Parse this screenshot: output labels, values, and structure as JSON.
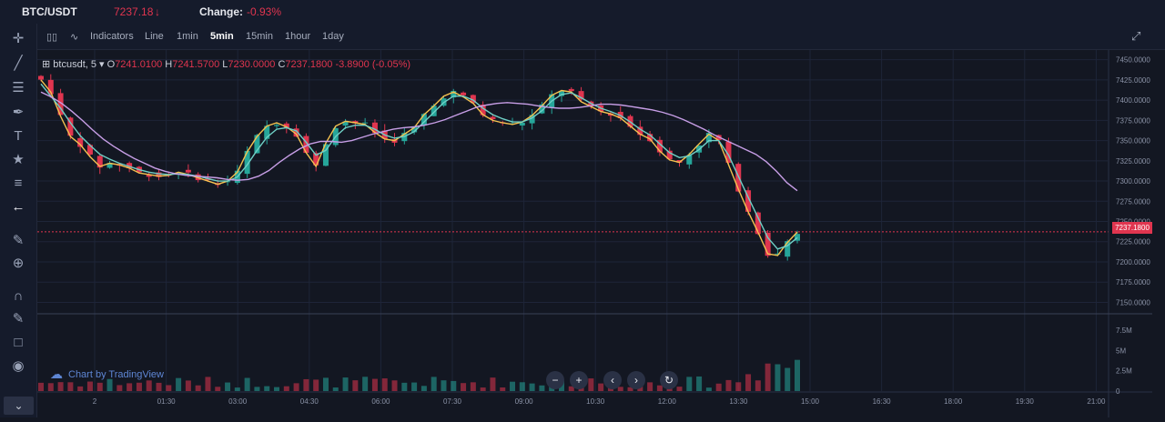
{
  "header": {
    "pair": "BTC/USDT",
    "price": "7237.18",
    "change_label": "Change:",
    "change_value": "-0.93%"
  },
  "toolbar": {
    "indicators_label": "Indicators",
    "intervals": [
      "Line",
      "1min",
      "5min",
      "15min",
      "1hour",
      "1day"
    ],
    "active_interval": "5min"
  },
  "legend": {
    "symbol": "btcusdt, 5",
    "o_label": "O",
    "open": "7241.0100",
    "h_label": "H",
    "high": "7241.5700",
    "l_label": "L",
    "low": "7230.0000",
    "c_label": "C",
    "close": "7237.1800",
    "change": "-3.8900 (-0.05%)"
  },
  "watermark": "Chart by TradingView",
  "last_price_tag": "7237.1800",
  "colors": {
    "up": "#26a69a",
    "down": "#e0354f",
    "ma_fast": "#f5c250",
    "ma_mid": "#6fd0c6",
    "ma_slow": "#c79ee6",
    "background": "#131722"
  },
  "chart_data": {
    "type": "line",
    "title": "",
    "ylim": [
      7137,
      7462
    ],
    "y_ticks": [
      "7450.0000",
      "7425.0000",
      "7400.0000",
      "7375.0000",
      "7350.0000",
      "7325.0000",
      "7300.0000",
      "7275.0000",
      "7250.0000",
      "7225.0000",
      "7200.0000",
      "7175.0000",
      "7150.0000"
    ],
    "x_ticks": [
      "2",
      "01:30",
      "03:00",
      "04:30",
      "06:00",
      "07:30",
      "09:00",
      "10:30",
      "12:00",
      "13:30",
      "15:00",
      "16:30",
      "18:00",
      "19:30",
      "21:00"
    ],
    "volume_ticks": [
      "7.5M",
      "5M",
      "2.5M",
      "0"
    ],
    "volume_ylim": [
      0,
      9.5
    ],
    "series": [
      {
        "values": [
          7425,
          7410,
          7380,
          7355,
          7345,
          7330,
          7318,
          7322,
          7320,
          7316,
          7310,
          7308,
          7306,
          7307,
          7311,
          7308,
          7304,
          7300,
          7296,
          7300,
          7311,
          7336,
          7355,
          7368,
          7372,
          7367,
          7358,
          7335,
          7318,
          7347,
          7368,
          7374,
          7372,
          7370,
          7360,
          7352,
          7350,
          7358,
          7366,
          7382,
          7393,
          7405,
          7410,
          7404,
          7396,
          7382,
          7375,
          7372,
          7370,
          7373,
          7381,
          7393,
          7406,
          7412,
          7410,
          7398,
          7392,
          7386,
          7383,
          7378,
          7368,
          7358,
          7352,
          7337,
          7326,
          7323,
          7333,
          7346,
          7358,
          7350,
          7320,
          7290,
          7262,
          7237,
          7210,
          7208,
          7224,
          7237
        ]
      },
      {
        "values": [
          7420,
          7405,
          7390,
          7372,
          7356,
          7344,
          7333,
          7327,
          7322,
          7318,
          7314,
          7311,
          7309,
          7308,
          7309,
          7308,
          7306,
          7303,
          7300,
          7300,
          7305,
          7320,
          7338,
          7354,
          7364,
          7366,
          7362,
          7348,
          7332,
          7338,
          7355,
          7366,
          7369,
          7369,
          7364,
          7357,
          7353,
          7355,
          7361,
          7373,
          7385,
          7397,
          7405,
          7405,
          7400,
          7390,
          7382,
          7377,
          7373,
          7373,
          7378,
          7387,
          7399,
          7407,
          7409,
          7403,
          7396,
          7390,
          7386,
          7381,
          7373,
          7364,
          7357,
          7346,
          7335,
          7329,
          7331,
          7339,
          7350,
          7350,
          7332,
          7306,
          7280,
          7255,
          7230,
          7216,
          7220,
          7230
        ]
      },
      {
        "values": [
          7410,
          7404,
          7396,
          7386,
          7375,
          7363,
          7352,
          7343,
          7335,
          7328,
          7322,
          7316,
          7312,
          7309,
          7307,
          7306,
          7305,
          7304,
          7302,
          7301,
          7302,
          7306,
          7313,
          7323,
          7332,
          7340,
          7346,
          7349,
          7349,
          7348,
          7350,
          7354,
          7358,
          7361,
          7364,
          7366,
          7367,
          7369,
          7372,
          7376,
          7381,
          7386,
          7391,
          7394,
          7396,
          7397,
          7396,
          7395,
          7393,
          7391,
          7390,
          7390,
          7391,
          7393,
          7395,
          7395,
          7394,
          7392,
          7390,
          7388,
          7385,
          7381,
          7376,
          7370,
          7364,
          7357,
          7351,
          7345,
          7339,
          7333,
          7324,
          7312,
          7298,
          7288
        ]
      }
    ]
  }
}
